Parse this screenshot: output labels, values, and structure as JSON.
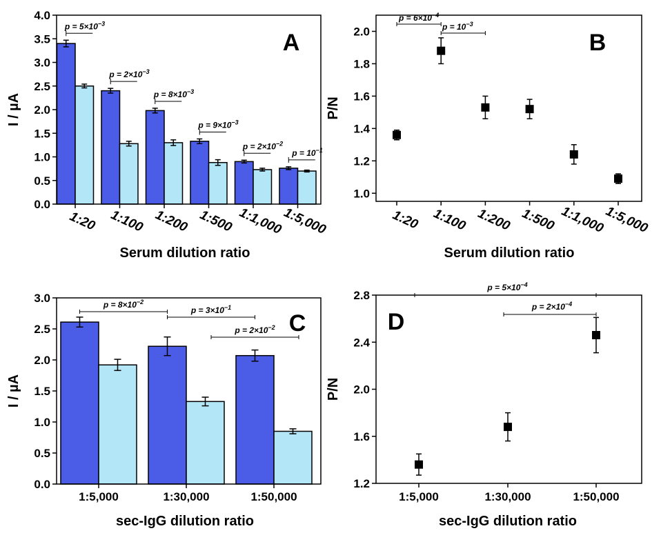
{
  "colors": {
    "positive_bar": "#4b5ce6",
    "negative_bar": "#b3e6f7",
    "marker": "#000000"
  },
  "chart_data": [
    {
      "panel": "A",
      "type": "bar",
      "xlabel": "Serum dilution ratio",
      "ylabel": "I / µA",
      "ylim": [
        0,
        4.0
      ],
      "yticks": [
        "0.0",
        "0.5",
        "1.0",
        "1.5",
        "2.0",
        "2.5",
        "3.0",
        "3.5",
        "4.0"
      ],
      "categories": [
        "1:20",
        "1:100",
        "1:200",
        "1:500",
        "1:1,000",
        "1:5,000"
      ],
      "series": [
        {
          "values": [
            3.4,
            2.4,
            1.98,
            1.33,
            0.9,
            0.76
          ],
          "errors": [
            0.07,
            0.05,
            0.05,
            0.05,
            0.03,
            0.03
          ]
        },
        {
          "values": [
            2.5,
            1.28,
            1.3,
            0.88,
            0.73,
            0.7
          ],
          "errors": [
            0.04,
            0.05,
            0.06,
            0.06,
            0.03,
            0.02
          ]
        }
      ],
      "comparisons": [
        {
          "label": "p = 5×10",
          "exp": "−3",
          "category": 0
        },
        {
          "label": "p = 2×10",
          "exp": "−3",
          "category": 1
        },
        {
          "label": "p = 8×10",
          "exp": "−3",
          "category": 2
        },
        {
          "label": "p = 9×10",
          "exp": "−3",
          "category": 3
        },
        {
          "label": "p = 2×10",
          "exp": "−2",
          "category": 4
        },
        {
          "label": "p = 10",
          "exp": "−1",
          "category": 5
        }
      ]
    },
    {
      "panel": "B",
      "type": "scatter",
      "xlabel": "Serum dilution ratio",
      "ylabel": "P/N",
      "ylim": [
        0.95,
        2.1
      ],
      "yticks": [
        "1.0",
        "1.2",
        "1.4",
        "1.6",
        "1.8",
        "2.0"
      ],
      "categories": [
        "1:20",
        "1:100",
        "1:200",
        "1:500",
        "1:1,000",
        "1:5,000"
      ],
      "values": [
        1.36,
        1.88,
        1.53,
        1.52,
        1.24,
        1.09
      ],
      "errors": [
        0.03,
        0.08,
        0.07,
        0.06,
        0.06,
        0.03
      ],
      "comparisons": [
        {
          "label": "p = 6×10",
          "exp": "−4",
          "from": 0,
          "to": 1
        },
        {
          "label": "p = 10",
          "exp": "−3",
          "from": 1,
          "to": 2
        }
      ]
    },
    {
      "panel": "C",
      "type": "bar",
      "xlabel": "sec-IgG dilution ratio",
      "ylabel": "I / µA",
      "ylim": [
        0,
        3.0
      ],
      "yticks": [
        "0.0",
        "0.5",
        "1.0",
        "1.5",
        "2.0",
        "2.5",
        "3.0"
      ],
      "categories": [
        "1:5,000",
        "1:30,000",
        "1:50,000"
      ],
      "series": [
        {
          "values": [
            2.61,
            2.22,
            2.07
          ],
          "errors": [
            0.08,
            0.15,
            0.09
          ]
        },
        {
          "values": [
            1.92,
            1.33,
            0.85
          ],
          "errors": [
            0.09,
            0.07,
            0.04
          ]
        }
      ],
      "comparisons": [
        {
          "label": "p = 8×10",
          "exp": "−2",
          "from": 0,
          "to": 1
        },
        {
          "label": "p = 3×10",
          "exp": "−1",
          "from": 1,
          "to": 2
        },
        {
          "label": "p = 2×10",
          "exp": "−2",
          "from": 1.5,
          "to": 2.5
        }
      ]
    },
    {
      "panel": "D",
      "type": "scatter",
      "xlabel": "sec-IgG dilution ratio",
      "ylabel": "P/N",
      "ylim": [
        1.2,
        2.8
      ],
      "yticks": [
        "1.2",
        "1.6",
        "2.0",
        "2.4",
        "2.8"
      ],
      "categories": [
        "1:5,000",
        "1:30,000",
        "1:50,000"
      ],
      "values": [
        1.36,
        1.68,
        2.46
      ],
      "errors": [
        0.09,
        0.12,
        0.15
      ],
      "comparisons": [
        {
          "label": "p = 5×10",
          "exp": "−4",
          "from": 0,
          "to": 2
        },
        {
          "label": "p = 2×10",
          "exp": "−4",
          "from": 1,
          "to": 2
        }
      ]
    }
  ]
}
